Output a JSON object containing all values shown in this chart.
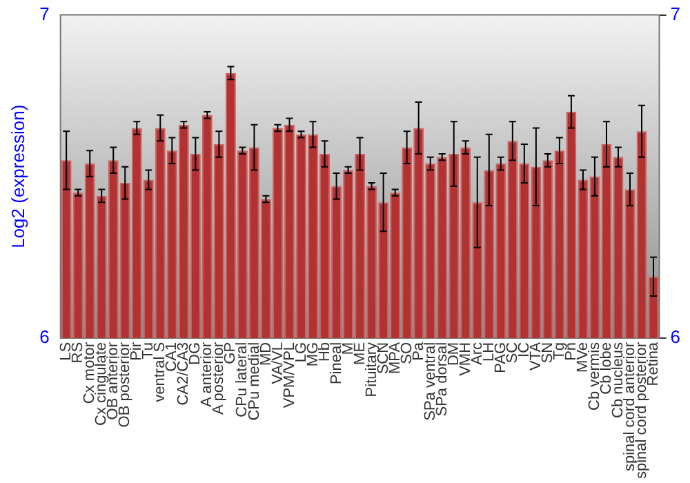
{
  "chart_data": {
    "type": "bar",
    "ylabel": "Log2 (expression)",
    "categories": [
      "LS",
      "RS",
      "Cx motor",
      "Cx cingulate",
      "OB anterior",
      "OB posterior",
      "Pir",
      "Tu",
      "ventral S",
      "CA1",
      "CA2/CA3",
      "DG",
      "A anterior",
      "A posterior",
      "GP",
      "CPu lateral",
      "CPu medial",
      "MD",
      "VA/VL",
      "VPM/VPL",
      "LG",
      "MG",
      "Hb",
      "Pineal",
      "M",
      "ME",
      "Pituitary",
      "SCN",
      "MPA",
      "SO",
      "Pa",
      "SPa ventral",
      "SPa dorsal",
      "DM",
      "VMH",
      "Arc",
      "LH",
      "PAG",
      "SC",
      "IC",
      "VTA",
      "SN",
      "Tg",
      "Pn",
      "MVe",
      "Cb vermis",
      "Cb lobe",
      "Cb nucleus",
      "spinal cord anterior",
      "spinal cord posterior",
      "Retina"
    ],
    "values": [
      6.55,
      6.45,
      6.54,
      6.44,
      6.55,
      6.48,
      6.65,
      6.49,
      6.65,
      6.58,
      6.66,
      6.57,
      6.69,
      6.6,
      6.82,
      6.58,
      6.59,
      6.43,
      6.65,
      6.66,
      6.63,
      6.63,
      6.57,
      6.47,
      6.52,
      6.57,
      6.47,
      6.42,
      6.45,
      6.59,
      6.65,
      6.54,
      6.56,
      6.57,
      6.59,
      6.42,
      6.52,
      6.54,
      6.61,
      6.54,
      6.53,
      6.55,
      6.58,
      6.7,
      6.49,
      6.5,
      6.6,
      6.56,
      6.46,
      6.64,
      6.19
    ],
    "errors": [
      0.09,
      0.01,
      0.04,
      0.02,
      0.04,
      0.05,
      0.02,
      0.03,
      0.04,
      0.04,
      0.01,
      0.05,
      0.01,
      0.04,
      0.02,
      0.01,
      0.07,
      0.01,
      0.01,
      0.02,
      0.01,
      0.04,
      0.04,
      0.04,
      0.01,
      0.05,
      0.01,
      0.09,
      0.01,
      0.05,
      0.08,
      0.02,
      0.01,
      0.1,
      0.02,
      0.14,
      0.11,
      0.02,
      0.06,
      0.06,
      0.12,
      0.02,
      0.04,
      0.05,
      0.03,
      0.06,
      0.07,
      0.03,
      0.05,
      0.08,
      0.06
    ],
    "color": "#b23232",
    "ylim": [
      6,
      7
    ],
    "yticks": [
      6,
      7
    ],
    "y2lim": [
      6,
      7
    ],
    "y2ticks": [
      6,
      7
    ],
    "grid": false,
    "legend": false
  }
}
